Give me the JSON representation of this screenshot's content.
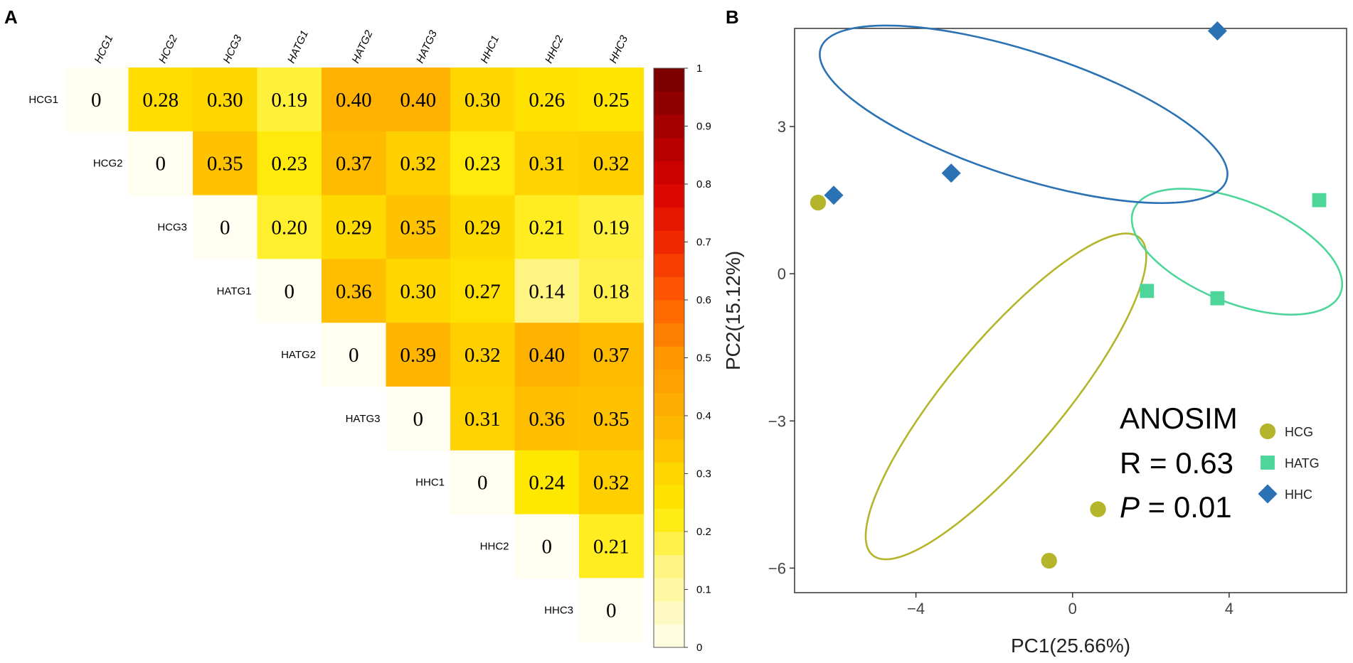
{
  "panel_a_label": "A",
  "panel_b_label": "B",
  "chart_data": [
    {
      "type": "heatmap",
      "labels": [
        "HCG1",
        "HCG2",
        "HCG3",
        "HATG1",
        "HATG2",
        "HATG3",
        "HHC1",
        "HHC2",
        "HHC3"
      ],
      "matrix": [
        [
          "0",
          "0.28",
          "0.30",
          "0.19",
          "0.40",
          "0.40",
          "0.30",
          "0.26",
          "0.25"
        ],
        [
          null,
          "0",
          "0.35",
          "0.23",
          "0.37",
          "0.32",
          "0.23",
          "0.31",
          "0.32"
        ],
        [
          null,
          null,
          "0",
          "0.20",
          "0.29",
          "0.35",
          "0.29",
          "0.21",
          "0.19"
        ],
        [
          null,
          null,
          null,
          "0",
          "0.36",
          "0.30",
          "0.27",
          "0.14",
          "0.18"
        ],
        [
          null,
          null,
          null,
          null,
          "0",
          "0.39",
          "0.32",
          "0.40",
          "0.37"
        ],
        [
          null,
          null,
          null,
          null,
          null,
          "0",
          "0.31",
          "0.36",
          "0.35"
        ],
        [
          null,
          null,
          null,
          null,
          null,
          null,
          "0",
          "0.24",
          "0.32"
        ],
        [
          null,
          null,
          null,
          null,
          null,
          null,
          null,
          "0",
          "0.21"
        ],
        [
          null,
          null,
          null,
          null,
          null,
          null,
          null,
          null,
          "0"
        ]
      ],
      "colorbar": {
        "min": 0,
        "max": 1,
        "ticks": [
          "0",
          "0.1",
          "0.2",
          "0.3",
          "0.4",
          "0.5",
          "0.6",
          "0.7",
          "0.8",
          "0.9",
          "1"
        ]
      }
    },
    {
      "type": "scatter",
      "xlabel": "PC1(25.66%)",
      "ylabel": "PC2(15.12%)",
      "xlim": [
        -7.1,
        7.0
      ],
      "ylim": [
        -6.5,
        5.0
      ],
      "xticks": [
        -4,
        0,
        4
      ],
      "xtick_labels": [
        "−4",
        "0",
        "4"
      ],
      "yticks": [
        -6,
        -3,
        0,
        3
      ],
      "ytick_labels": [
        "−6",
        "−3",
        "0",
        "3"
      ],
      "series": [
        {
          "name": "HCG",
          "color": "#b5b52c",
          "marker": "circle",
          "points": [
            [
              -6.5,
              1.45
            ],
            [
              0.65,
              -4.8
            ],
            [
              -0.6,
              -5.85
            ]
          ],
          "ellipse": {
            "cx": -1.7,
            "cy": -2.5,
            "rx": 5.3,
            "ry": 1.45,
            "angle_deg": -50
          }
        },
        {
          "name": "HATG",
          "color": "#4ed69a",
          "marker": "square",
          "points": [
            [
              6.3,
              1.5
            ],
            [
              1.9,
              -0.35
            ],
            [
              3.7,
              -0.5
            ]
          ],
          "ellipse": {
            "cx": 4.2,
            "cy": 0.45,
            "rx": 2.85,
            "ry": 1.3,
            "angle_deg": 22
          }
        },
        {
          "name": "HHC",
          "color": "#2a72b4",
          "marker": "diamond",
          "points": [
            [
              3.7,
              4.95
            ],
            [
              -3.1,
              2.05
            ],
            [
              -6.1,
              1.6
            ]
          ],
          "ellipse": {
            "cx": -1.25,
            "cy": 3.25,
            "rx": 5.45,
            "ry": 1.6,
            "angle_deg": 18
          }
        }
      ],
      "annotation": {
        "title": "ANOSIM",
        "r_prefix": "R = ",
        "r_value": "0.63",
        "p_symbol": "P",
        "p_suffix": " = 0.01"
      },
      "legend_position": "bottom-right"
    }
  ]
}
